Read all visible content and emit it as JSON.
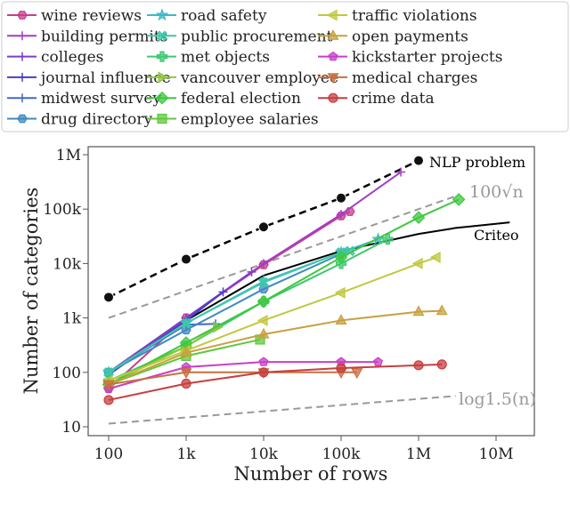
{
  "chart_data": {
    "type": "line",
    "xlabel": "Number of rows",
    "ylabel": "Number of categories",
    "xscale": "log",
    "yscale": "log",
    "xlim": [
      60,
      25000000
    ],
    "ylim": [
      7,
      1400000
    ],
    "x_ticks": [
      {
        "v": 100,
        "label": "100"
      },
      {
        "v": 1000,
        "label": "1k"
      },
      {
        "v": 10000,
        "label": "10k"
      },
      {
        "v": 100000,
        "label": "100k"
      },
      {
        "v": 1000000,
        "label": "1M"
      },
      {
        "v": 10000000,
        "label": "10M"
      }
    ],
    "y_ticks": [
      {
        "v": 10,
        "label": "10"
      },
      {
        "v": 100,
        "label": "100"
      },
      {
        "v": 1000,
        "label": "1k"
      },
      {
        "v": 10000,
        "label": "10k"
      },
      {
        "v": 100000,
        "label": "100k"
      },
      {
        "v": 1000000,
        "label": "1M"
      }
    ],
    "grid": false,
    "legend_position": "top",
    "series": [
      {
        "name": "wine reviews",
        "color": "#c83e8a",
        "marker": "hexagon",
        "x": [
          100,
          1000,
          10000,
          100000,
          130000
        ],
        "y": [
          50,
          1000,
          9500,
          75000,
          90000
        ]
      },
      {
        "name": "building permits",
        "color": "#a23ec8",
        "marker": "tri_right",
        "x": [
          100,
          1000,
          10000,
          100000,
          590000
        ],
        "y": [
          90,
          1000,
          10000,
          80000,
          480000
        ]
      },
      {
        "name": "colleges",
        "color": "#7a3ec8",
        "marker": "tri_left",
        "x": [
          100,
          1000,
          7000
        ],
        "y": [
          100,
          1000,
          7000
        ]
      },
      {
        "name": "journal influence",
        "color": "#4a3ec8",
        "marker": "tri_up",
        "x": [
          100,
          1000,
          3000
        ],
        "y": [
          90,
          900,
          3000
        ]
      },
      {
        "name": "midwest survey",
        "color": "#3e6ac8",
        "marker": "tri_down",
        "x": [
          100,
          1000,
          2400
        ],
        "y": [
          100,
          750,
          780
        ]
      },
      {
        "name": "drug directory",
        "color": "#3e8ac0",
        "marker": "hexagon",
        "x": [
          100,
          1000,
          10000,
          100000
        ],
        "y": [
          100,
          600,
          3400,
          15000
        ]
      },
      {
        "name": "road safety",
        "color": "#3eb8c8",
        "marker": "star",
        "x": [
          100,
          1000,
          10000,
          100000,
          300000
        ],
        "y": [
          100,
          800,
          4700,
          16000,
          28000
        ]
      },
      {
        "name": "public procurement",
        "color": "#3ec8a8",
        "marker": "x",
        "x": [
          100,
          1000,
          10000,
          100000,
          130000
        ],
        "y": [
          100,
          800,
          4500,
          16000,
          17000
        ]
      },
      {
        "name": "met objects",
        "color": "#3ec870",
        "marker": "plus",
        "x": [
          100,
          1000,
          10000,
          100000,
          400000
        ],
        "y": [
          70,
          300,
          2000,
          10000,
          28000
        ]
      },
      {
        "name": "vancouver employee",
        "color": "#8ec83e",
        "marker": "triangle_right",
        "x": [
          100,
          1000,
          2500
        ],
        "y": [
          60,
          300,
          680
        ]
      },
      {
        "name": "federal election",
        "color": "#3ec83e",
        "marker": "diamond",
        "x": [
          100,
          1000,
          10000,
          100000,
          1000000,
          3300000
        ],
        "y": [
          60,
          350,
          2000,
          13000,
          70000,
          150000
        ]
      },
      {
        "name": "employee salaries",
        "color": "#5ec83e",
        "marker": "square",
        "x": [
          100,
          1000,
          9000
        ],
        "y": [
          60,
          200,
          400
        ]
      },
      {
        "name": "traffic violations",
        "color": "#c0c83e",
        "marker": "triangle_left",
        "x": [
          100,
          1000,
          10000,
          100000,
          1000000,
          1700000
        ],
        "y": [
          70,
          250,
          900,
          2900,
          10000,
          13000
        ]
      },
      {
        "name": "open payments",
        "color": "#c8a03e",
        "marker": "triangle_up",
        "x": [
          100,
          1000,
          10000,
          100000,
          1000000,
          2000000
        ],
        "y": [
          60,
          230,
          500,
          900,
          1300,
          1350
        ]
      },
      {
        "name": "kickstarter projects",
        "color": "#c83ec8",
        "marker": "pentagon",
        "x": [
          100,
          1000,
          10000,
          100000,
          300000
        ],
        "y": [
          50,
          125,
          155,
          155,
          155
        ]
      },
      {
        "name": "medical charges",
        "color": "#c8703e",
        "marker": "triangle_down",
        "x": [
          100,
          1000,
          10000,
          100000,
          160000
        ],
        "y": [
          60,
          100,
          100,
          100,
          100
        ]
      },
      {
        "name": "crime data",
        "color": "#c83e3e",
        "marker": "circle",
        "x": [
          100,
          1000,
          10000,
          100000,
          1000000,
          2000000
        ],
        "y": [
          31,
          62,
          100,
          120,
          135,
          140
        ]
      }
    ],
    "references": [
      {
        "name": "NLP problem",
        "color": "#000000",
        "style": "dashed",
        "marker": "circle",
        "x": [
          100,
          1000,
          10000,
          100000,
          1000000
        ],
        "y": [
          2400,
          12000,
          47000,
          160000,
          780000
        ]
      },
      {
        "name": "Criteo",
        "color": "#000000",
        "style": "solid",
        "x": [
          100,
          1000,
          10000,
          100000,
          1000000,
          3000000,
          15000000
        ],
        "y": [
          100,
          900,
          6000,
          17000,
          35000,
          45000,
          57000
        ]
      },
      {
        "name": "100√n",
        "color": "#999999",
        "style": "dashed",
        "x": [
          100,
          3000000
        ],
        "y": [
          1000,
          173000
        ]
      },
      {
        "name": "log1.5(n)",
        "color": "#999999",
        "style": "dashed",
        "x": [
          100,
          3000000
        ],
        "y": [
          11.4,
          36.8
        ]
      }
    ]
  }
}
